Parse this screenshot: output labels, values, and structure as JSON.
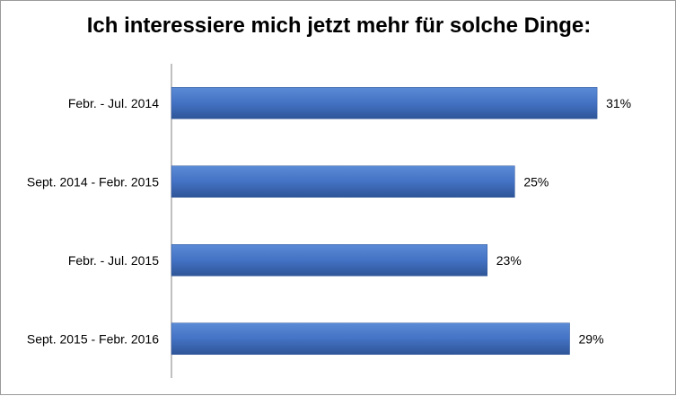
{
  "chart_data": {
    "type": "bar",
    "orientation": "horizontal",
    "title": "Ich interessiere mich jetzt mehr für solche Dinge:",
    "categories": [
      "Febr. - Jul. 2014",
      "Sept. 2014 - Febr. 2015",
      "Febr. - Jul. 2015",
      "Sept. 2015 - Febr. 2016"
    ],
    "values": [
      31,
      25,
      23,
      29
    ],
    "value_labels": [
      "31%",
      "25%",
      "23%",
      "29%"
    ],
    "xlim": [
      0,
      32.3
    ],
    "xlabel": "",
    "ylabel": "",
    "grid": false,
    "bar_color": "#4472C4",
    "bar_color_dark": "#2E5597"
  }
}
